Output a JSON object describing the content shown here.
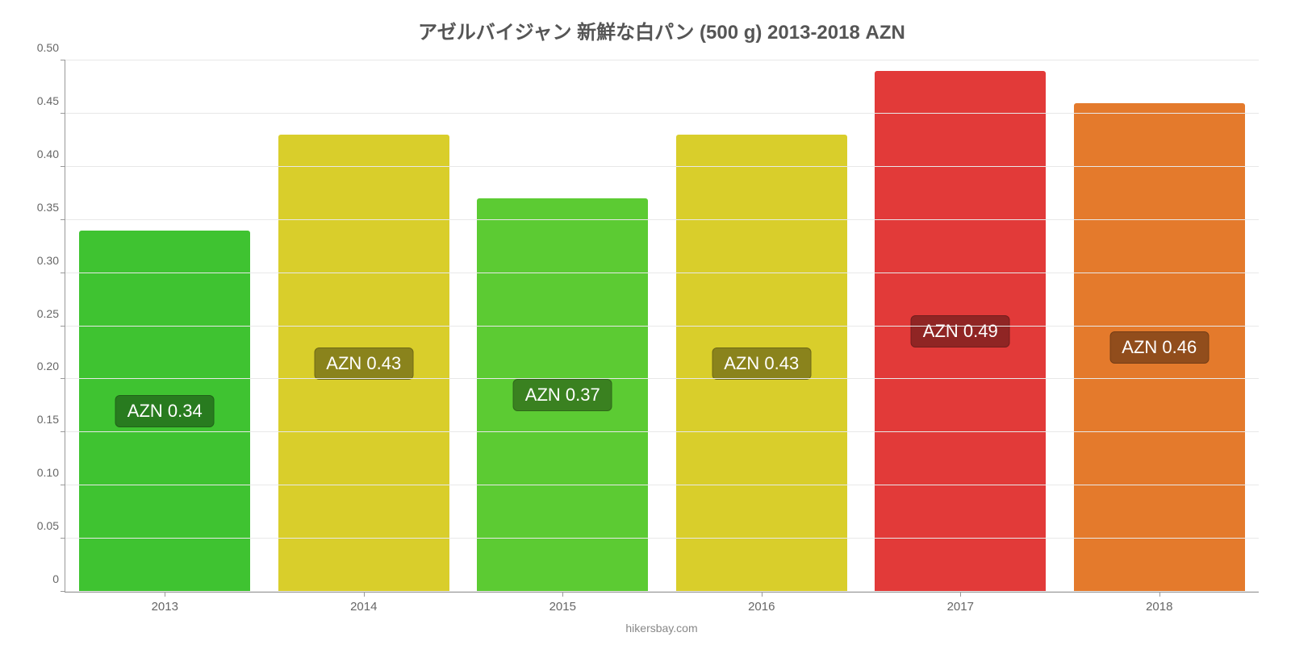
{
  "chart": {
    "type": "bar",
    "title": "アゼルバイジャン 新鮮な白パン (500 g) 2013-2018 AZN",
    "title_fontsize": 24,
    "title_color": "#555555",
    "background_color": "#ffffff",
    "grid_color": "#e8e8e8",
    "axis_color": "#999999",
    "tick_label_color": "#666666",
    "ylim_min": 0,
    "ylim_max": 0.5,
    "ytick_step": 0.05,
    "yticks": [
      {
        "value": 0.0,
        "label": "0"
      },
      {
        "value": 0.05,
        "label": "0.05"
      },
      {
        "value": 0.1,
        "label": "0.10"
      },
      {
        "value": 0.15,
        "label": "0.15"
      },
      {
        "value": 0.2,
        "label": "0.20"
      },
      {
        "value": 0.25,
        "label": "0.25"
      },
      {
        "value": 0.3,
        "label": "0.30"
      },
      {
        "value": 0.35,
        "label": "0.35"
      },
      {
        "value": 0.4,
        "label": "0.40"
      },
      {
        "value": 0.45,
        "label": "0.45"
      },
      {
        "value": 0.5,
        "label": "0.50"
      }
    ],
    "tick_fontsize": 14,
    "bar_width_pct": 86,
    "bar_label_fontsize": 22,
    "categories": [
      "2013",
      "2014",
      "2015",
      "2016",
      "2017",
      "2018"
    ],
    "series": [
      {
        "category": "2013",
        "value": 0.34,
        "label": "AZN 0.34",
        "bar_color": "#3fc331",
        "label_bg": "#287b1f"
      },
      {
        "category": "2014",
        "value": 0.43,
        "label": "AZN 0.43",
        "bar_color": "#d9ce2b",
        "label_bg": "#8a831c"
      },
      {
        "category": "2015",
        "value": 0.37,
        "label": "AZN 0.37",
        "bar_color": "#5ccb33",
        "label_bg": "#3a8120"
      },
      {
        "category": "2016",
        "value": 0.43,
        "label": "AZN 0.43",
        "bar_color": "#d9ce2b",
        "label_bg": "#8a831c"
      },
      {
        "category": "2017",
        "value": 0.49,
        "label": "AZN 0.49",
        "bar_color": "#e23a39",
        "label_bg": "#902524"
      },
      {
        "category": "2018",
        "value": 0.46,
        "label": "AZN 0.46",
        "bar_color": "#e47a2c",
        "label_bg": "#914d1c"
      }
    ],
    "footer": "hikersbay.com",
    "footer_color": "#888888",
    "footer_fontsize": 14
  }
}
